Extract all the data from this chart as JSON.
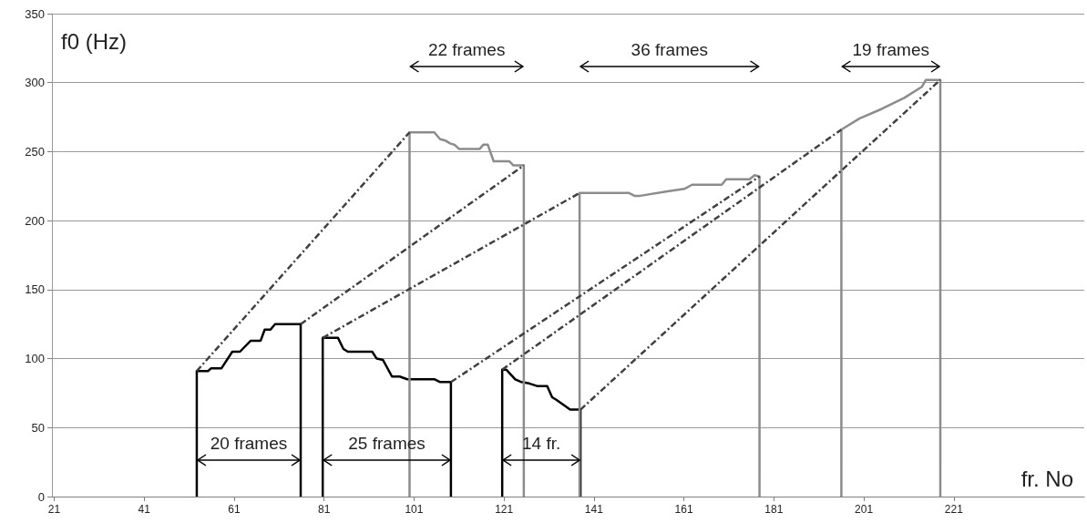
{
  "chart_data": {
    "type": "line",
    "xlabel": "fr. No",
    "ylabel": "f0 (Hz)",
    "xlim": [
      20.5,
      250
    ],
    "xticks": [
      21,
      41,
      61,
      81,
      101,
      121,
      141,
      161,
      181,
      201,
      221
    ],
    "ylim": [
      0,
      350
    ],
    "yticks": [
      0,
      50,
      100,
      150,
      200,
      250,
      300,
      350
    ],
    "grid": "y",
    "marker": "none",
    "line_style": "solid",
    "series": [
      {
        "color": "#000000",
        "x": [
          52.7,
          52.7,
          55.2,
          55.9,
          58.2,
          60.6,
          62.3,
          64.7,
          66.9,
          67.8,
          69.1,
          70.1,
          75.8,
          75.8
        ],
        "values": [
          0,
          91,
          91,
          93,
          93,
          105,
          105,
          113,
          113,
          121,
          121,
          125,
          125,
          0
        ]
      },
      {
        "color": "#000000",
        "x": [
          80.7,
          80.7,
          84.1,
          85.3,
          86.3,
          91.7,
          92.7,
          94.1,
          96.1,
          97.8,
          99.5,
          105.6,
          106.8,
          109.2,
          109.2
        ],
        "values": [
          0,
          115,
          115,
          107,
          105,
          105,
          100,
          99,
          87,
          87,
          85,
          85,
          83,
          83,
          0
        ]
      },
      {
        "color": "#000000",
        "x": [
          120.6,
          120.6,
          121.5,
          123.5,
          124.9,
          126.6,
          128.5,
          130.6,
          131.7,
          132.7,
          135.7,
          138,
          138
        ],
        "values": [
          0,
          92,
          92,
          85,
          83,
          82,
          80,
          80,
          72,
          70,
          63,
          63,
          0
        ]
      },
      {
        "color": "#8c8c8c",
        "x": [
          100,
          100,
          105.5,
          106.8,
          108,
          109,
          110,
          111,
          115.6,
          116.4,
          117.4,
          118.7,
          122.2,
          123.1,
          125.4,
          125.4
        ],
        "values": [
          0,
          264,
          264,
          259,
          258,
          256,
          255,
          252,
          252,
          255,
          255,
          243,
          243,
          240,
          240,
          0
        ]
      },
      {
        "color": "#8c8c8c",
        "x": [
          137.8,
          137.8,
          148.8,
          150,
          151.3,
          157,
          161.1,
          162.8,
          169.4,
          170.4,
          175.6,
          176.7,
          177.8,
          177.8
        ],
        "values": [
          0,
          220,
          220,
          218,
          218,
          221,
          223,
          226,
          226,
          230,
          230,
          233,
          232,
          0
        ]
      },
      {
        "color": "#8c8c8c",
        "x": [
          196,
          196,
          200,
          205,
          210,
          213.9,
          214.8,
          218,
          218
        ],
        "values": [
          0,
          266,
          274,
          281,
          289,
          297,
          302,
          302,
          0
        ]
      },
      {
        "color": "#404040",
        "line_style": "dashed",
        "x": [
          52.7,
          100
        ],
        "values": [
          91,
          264
        ]
      },
      {
        "color": "#404040",
        "line_style": "dashed",
        "x": [
          75.8,
          125.4
        ],
        "values": [
          125,
          240
        ]
      },
      {
        "color": "#404040",
        "line_style": "dashed",
        "x": [
          80.7,
          137.8
        ],
        "values": [
          115,
          220
        ]
      },
      {
        "color": "#404040",
        "line_style": "dashed",
        "x": [
          109.2,
          177.8
        ],
        "values": [
          83,
          232
        ]
      },
      {
        "color": "#404040",
        "line_style": "dashed",
        "x": [
          120.6,
          196
        ],
        "values": [
          92,
          266
        ]
      },
      {
        "color": "#404040",
        "line_style": "dashed",
        "x": [
          138,
          218
        ],
        "values": [
          63,
          302
        ]
      }
    ],
    "annotations": [
      "20 frames",
      "25 frames",
      "14 fr.",
      "22 frames",
      "36 frames",
      "19 frames"
    ]
  }
}
